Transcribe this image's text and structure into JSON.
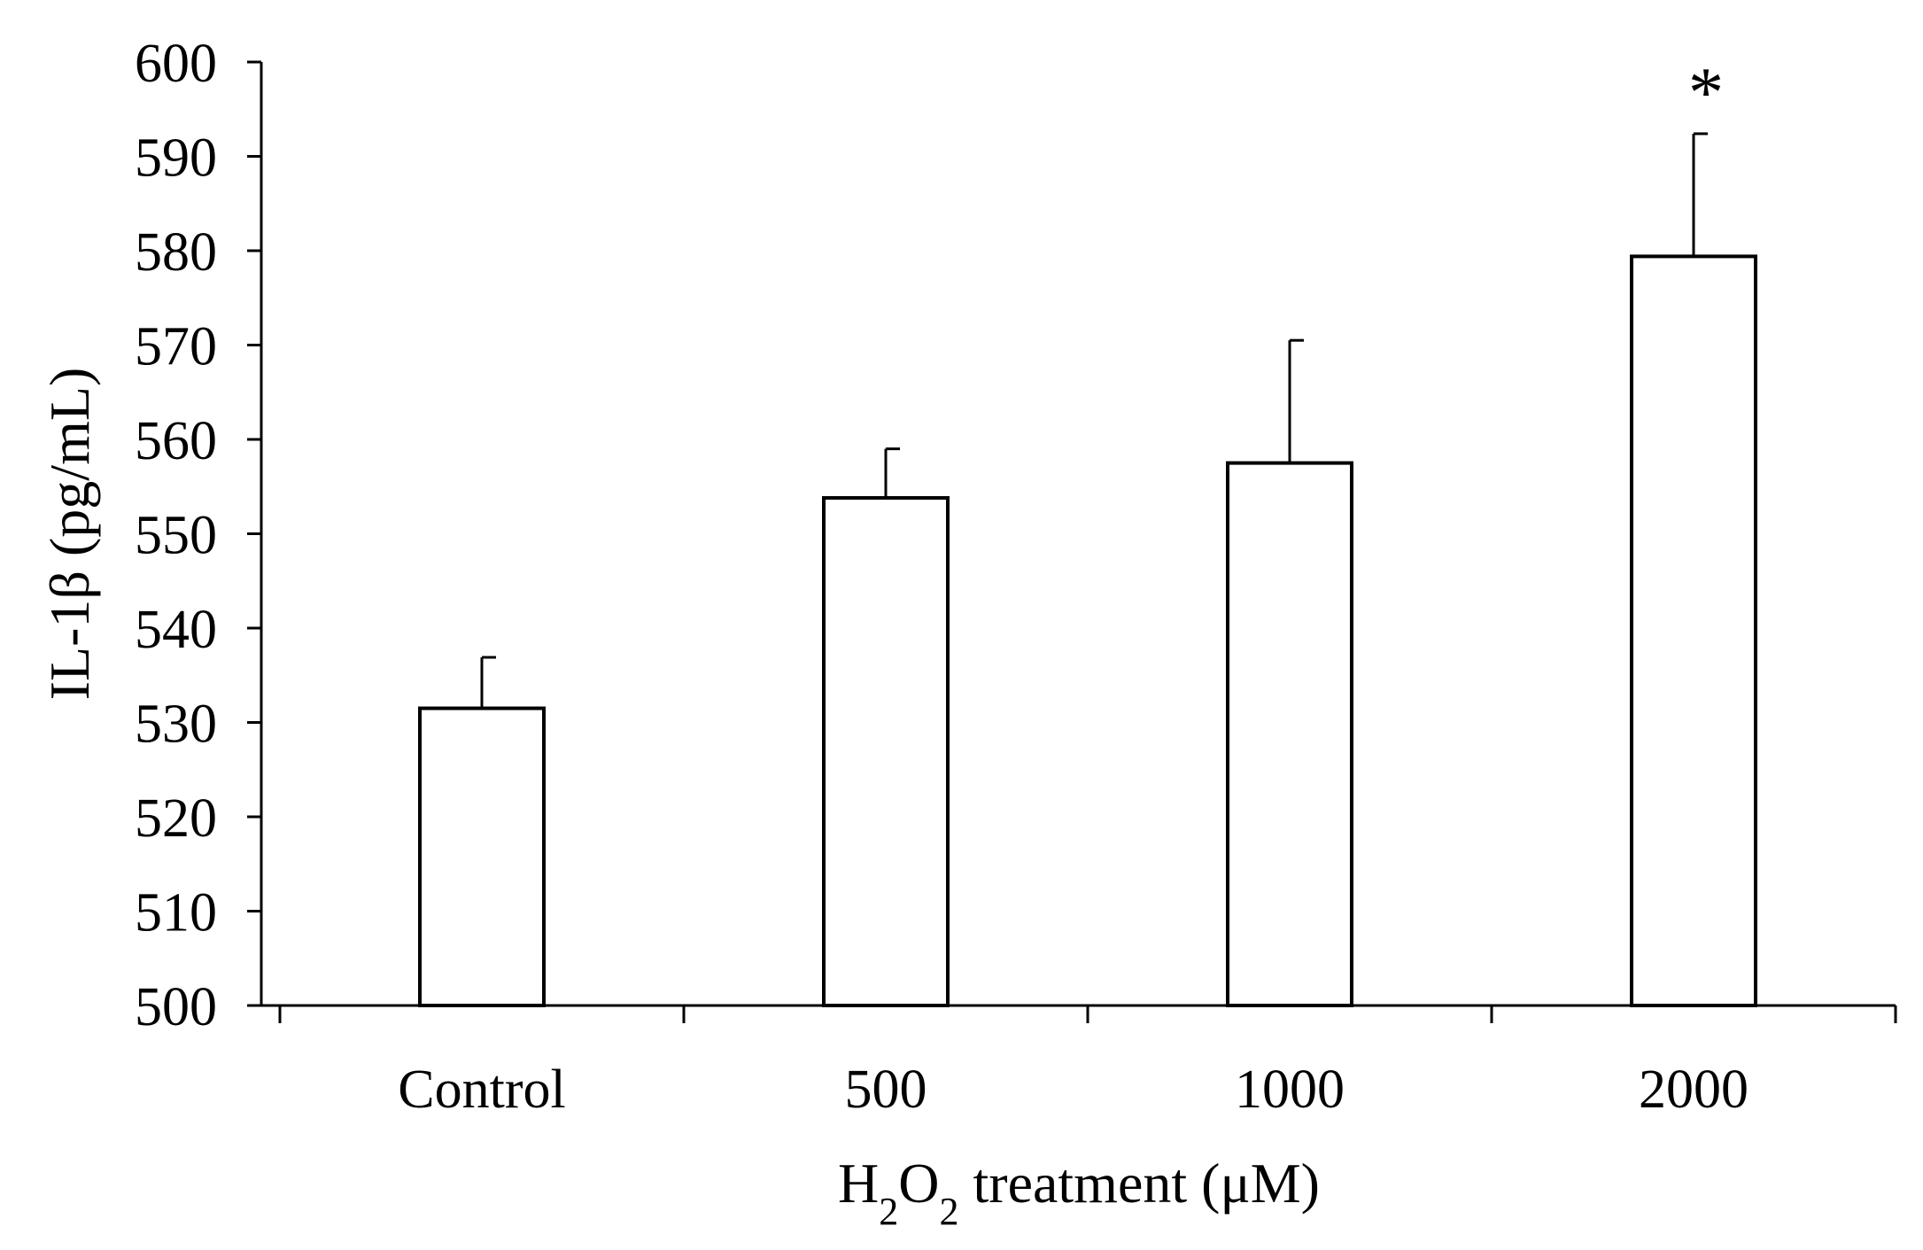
{
  "chart_data": {
    "type": "bar",
    "title": "",
    "categories": [
      "Control",
      "500",
      "1000",
      "2000"
    ],
    "values": [
      531.5,
      553.8,
      557.5,
      579.4
    ],
    "errors": [
      5.4,
      5.2,
      13.0,
      13.0
    ],
    "annotations": [
      "",
      "",
      "",
      "*"
    ],
    "xlabel": {
      "prefix": "H",
      "sub1": "2",
      "mid": "O",
      "sub2": "2",
      "suffix": " treatment (μM)"
    },
    "ylabel": "IL-1β (pg/mL)",
    "ylim": [
      500,
      600
    ],
    "yticks": [
      500,
      510,
      520,
      530,
      540,
      550,
      560,
      570,
      580,
      590,
      600
    ],
    "grid": false,
    "bar_color": "#ffffff",
    "edge_color": "#000000"
  }
}
